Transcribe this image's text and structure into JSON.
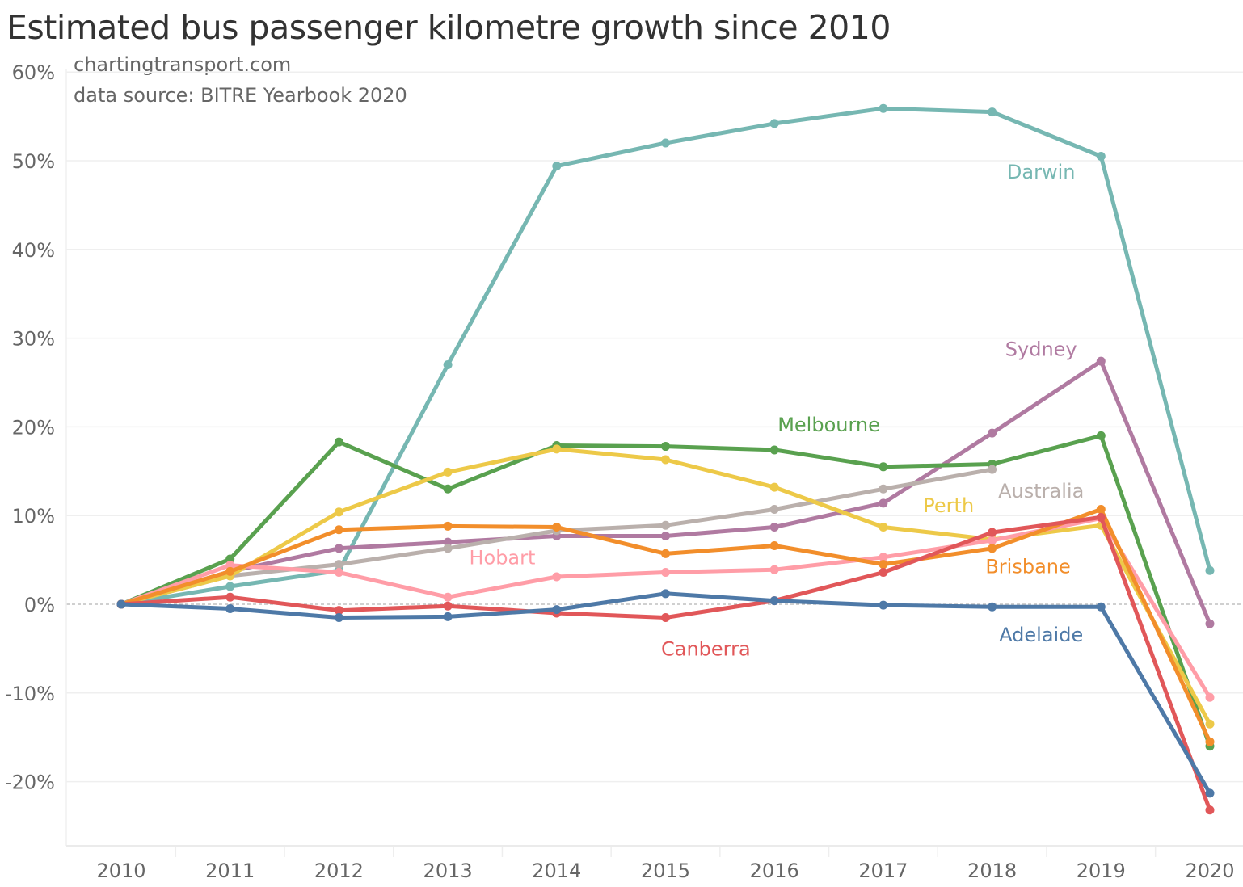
{
  "chart_data": {
    "type": "line",
    "title": "Estimated bus passenger kilometre growth since 2010",
    "subtitles": [
      "chartingtransport.com",
      "data source: BITRE Yearbook 2020"
    ],
    "xlabel": "",
    "ylabel": "",
    "x": [
      "2010",
      "2011",
      "2012",
      "2013",
      "2014",
      "2015",
      "2016",
      "2017",
      "2018",
      "2019",
      "2020"
    ],
    "ylim": [
      -27,
      60
    ],
    "yticks": [
      60,
      50,
      40,
      30,
      20,
      10,
      0,
      -10,
      -20
    ],
    "ytick_labels": [
      "60%",
      "50%",
      "40%",
      "30%",
      "20%",
      "10%",
      "0%",
      "-10%",
      "-20%"
    ],
    "grid": true,
    "zero_line": "dashed",
    "legend": "inline labels",
    "series": [
      {
        "name": "Darwin",
        "color": "#76b7b2",
        "values": [
          0,
          2.0,
          3.8,
          27.0,
          49.4,
          52.0,
          54.2,
          55.9,
          55.5,
          50.5,
          3.8
        ],
        "label_anchor": {
          "x_index": 8.45,
          "y_value": 48.0
        }
      },
      {
        "name": "Sydney",
        "color": "#b07aa1",
        "values": [
          0,
          3.7,
          6.3,
          7.0,
          7.7,
          7.7,
          8.7,
          11.4,
          19.3,
          27.4,
          -2.2
        ],
        "label_anchor": {
          "x_index": 8.45,
          "y_value": 28.0
        }
      },
      {
        "name": "Melbourne",
        "color": "#59a14f",
        "values": [
          0,
          5.1,
          18.3,
          13.0,
          17.9,
          17.8,
          17.4,
          15.5,
          15.8,
          19.0,
          -16.0
        ],
        "label_anchor": {
          "x_index": 6.5,
          "y_value": 19.5
        }
      },
      {
        "name": "Australia",
        "color": "#bab0ac",
        "values": [
          0,
          3.2,
          4.5,
          6.3,
          8.3,
          8.9,
          10.7,
          13.0,
          15.2,
          null,
          null
        ],
        "label_anchor": {
          "x_index": 8.45,
          "y_value": 12.0
        }
      },
      {
        "name": "Perth",
        "color": "#edc948",
        "values": [
          0,
          3.2,
          10.4,
          14.9,
          17.5,
          16.3,
          13.2,
          8.7,
          7.3,
          8.9,
          -13.5
        ],
        "label_anchor": {
          "x_index": 7.6,
          "y_value": 10.4
        }
      },
      {
        "name": "Hobart",
        "color": "#ff9da7",
        "values": [
          0,
          4.4,
          3.6,
          0.8,
          3.1,
          3.6,
          3.9,
          5.3,
          7.2,
          9.7,
          -10.5
        ],
        "label_anchor": {
          "x_index": 3.5,
          "y_value": 4.5
        }
      },
      {
        "name": "Brisbane",
        "color": "#f28e2b",
        "values": [
          0,
          3.7,
          8.4,
          8.8,
          8.7,
          5.7,
          6.6,
          4.5,
          6.3,
          10.7,
          -15.5
        ],
        "label_anchor": {
          "x_index": 8.33,
          "y_value": 3.5
        }
      },
      {
        "name": "Canberra",
        "color": "#e15759",
        "values": [
          0,
          0.8,
          -0.7,
          -0.2,
          -1.0,
          -1.5,
          0.4,
          3.6,
          8.1,
          9.8,
          -23.2
        ],
        "label_anchor": {
          "x_index": 5.37,
          "y_value": -5.8
        }
      },
      {
        "name": "Adelaide",
        "color": "#4e79a7",
        "values": [
          0,
          -0.5,
          -1.5,
          -1.4,
          -0.6,
          1.2,
          0.4,
          -0.1,
          -0.3,
          -0.3,
          -21.3
        ],
        "label_anchor": {
          "x_index": 8.45,
          "y_value": -4.2
        }
      }
    ]
  }
}
